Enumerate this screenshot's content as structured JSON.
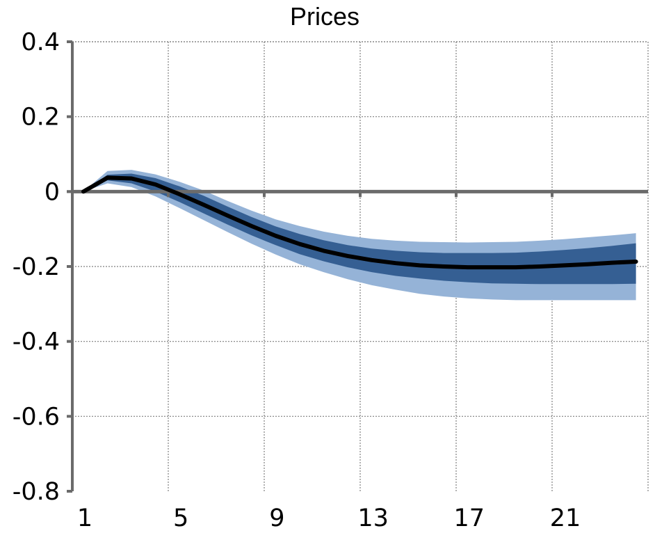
{
  "chart_data": {
    "type": "area",
    "title": "Prices",
    "xlabel": "",
    "ylabel": "",
    "xlim": [
      1,
      24
    ],
    "ylim": [
      -0.8,
      0.4
    ],
    "grid": true,
    "x_ticks": [
      1,
      5,
      9,
      13,
      17,
      21
    ],
    "y_ticks": [
      "0.4",
      "0.2",
      "0",
      "-0.2",
      "-0.4",
      "-0.6",
      "-0.8"
    ],
    "y_tick_values": [
      0.4,
      0.2,
      0,
      -0.2,
      -0.4,
      -0.6,
      -0.8
    ],
    "x": [
      1,
      2,
      3,
      4,
      5,
      6,
      7,
      8,
      9,
      10,
      11,
      12,
      13,
      14,
      15,
      16,
      17,
      18,
      19,
      20,
      21,
      22,
      23,
      24
    ],
    "bands": [
      {
        "color": "#95b3d7",
        "upper": [
          0,
          0.055,
          0.058,
          0.046,
          0.026,
          0.003,
          -0.025,
          -0.051,
          -0.074,
          -0.092,
          -0.107,
          -0.118,
          -0.126,
          -0.131,
          -0.134,
          -0.135,
          -0.136,
          -0.135,
          -0.134,
          -0.131,
          -0.127,
          -0.122,
          -0.117,
          -0.111
        ],
        "lower": [
          0,
          0.022,
          0.012,
          -0.013,
          -0.044,
          -0.076,
          -0.108,
          -0.139,
          -0.168,
          -0.194,
          -0.215,
          -0.234,
          -0.25,
          -0.262,
          -0.273,
          -0.28,
          -0.285,
          -0.288,
          -0.29,
          -0.29,
          -0.29,
          -0.29,
          -0.29,
          -0.29
        ]
      },
      {
        "color": "#355f93",
        "upper": [
          0,
          0.045,
          0.048,
          0.036,
          0.014,
          -0.011,
          -0.04,
          -0.068,
          -0.093,
          -0.113,
          -0.13,
          -0.143,
          -0.152,
          -0.158,
          -0.162,
          -0.164,
          -0.164,
          -0.164,
          -0.163,
          -0.16,
          -0.156,
          -0.151,
          -0.145,
          -0.138
        ],
        "lower": [
          0,
          0.03,
          0.022,
          0.0,
          -0.028,
          -0.058,
          -0.088,
          -0.117,
          -0.143,
          -0.167,
          -0.186,
          -0.202,
          -0.215,
          -0.225,
          -0.232,
          -0.238,
          -0.242,
          -0.245,
          -0.246,
          -0.247,
          -0.247,
          -0.247,
          -0.247,
          -0.246
        ]
      }
    ],
    "series": [
      {
        "color": "#000000",
        "values": [
          0,
          0.037,
          0.035,
          0.019,
          -0.007,
          -0.035,
          -0.064,
          -0.092,
          -0.118,
          -0.14,
          -0.158,
          -0.172,
          -0.183,
          -0.191,
          -0.197,
          -0.2,
          -0.202,
          -0.202,
          -0.202,
          -0.2,
          -0.197,
          -0.194,
          -0.19,
          -0.187
        ]
      }
    ]
  }
}
